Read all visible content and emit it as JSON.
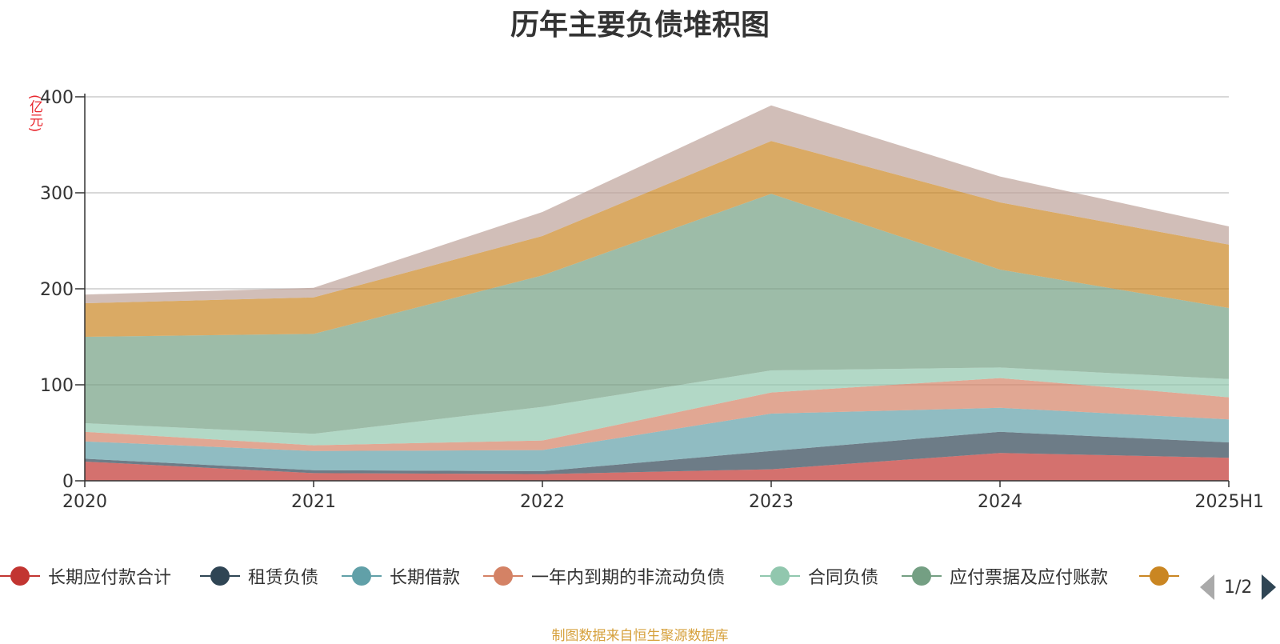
{
  "chart_data": {
    "type": "area",
    "stacked": true,
    "title": "历年主要负债堆积图",
    "unit": "(亿元)",
    "categories": [
      "2020",
      "2021",
      "2022",
      "2023",
      "2024",
      "2025H1"
    ],
    "ylim": [
      0,
      400
    ],
    "yticks": [
      0,
      100,
      200,
      300,
      400
    ],
    "grid": true,
    "legend_position": "bottom",
    "series": [
      {
        "name": "长期应付款合计",
        "color": "#c23531",
        "values": [
          20,
          8,
          7,
          12,
          29,
          24
        ]
      },
      {
        "name": "租赁负债",
        "color": "#2f4554",
        "values": [
          3,
          3,
          3,
          19,
          22,
          16
        ]
      },
      {
        "name": "长期借款",
        "color": "#61a0a8",
        "values": [
          18,
          20,
          22,
          39,
          25,
          24
        ]
      },
      {
        "name": "一年内到期的非流动负债",
        "color": "#d48265",
        "values": [
          10,
          6,
          10,
          22,
          31,
          23
        ]
      },
      {
        "name": "合同负债",
        "color": "#91c7ae",
        "values": [
          9,
          12,
          35,
          23,
          11,
          19
        ]
      },
      {
        "name": "应付票据及应付账款",
        "color": "#749f83",
        "values": [
          90,
          104,
          137,
          184,
          102,
          74
        ]
      },
      {
        "name": "",
        "color": "#ca8622",
        "values": [
          35,
          38,
          41,
          55,
          70,
          66
        ]
      },
      {
        "name": "",
        "color": "#bda29a",
        "values": [
          9,
          10,
          25,
          37,
          27,
          19
        ]
      }
    ]
  },
  "legend": {
    "items": [
      {
        "label": "长期应付款合计",
        "color": "#c23531"
      },
      {
        "label": "租赁负债",
        "color": "#2f4554"
      },
      {
        "label": "长期借款",
        "color": "#61a0a8"
      },
      {
        "label": "一年内到期的非流动负债",
        "color": "#d48265"
      },
      {
        "label": "合同负债",
        "color": "#91c7ae"
      },
      {
        "label": "应付票据及应付账款",
        "color": "#749f83"
      },
      {
        "label": "",
        "color": "#ca8622"
      }
    ],
    "page": "1/2"
  },
  "source": "制图数据来自恒生聚源数据库"
}
